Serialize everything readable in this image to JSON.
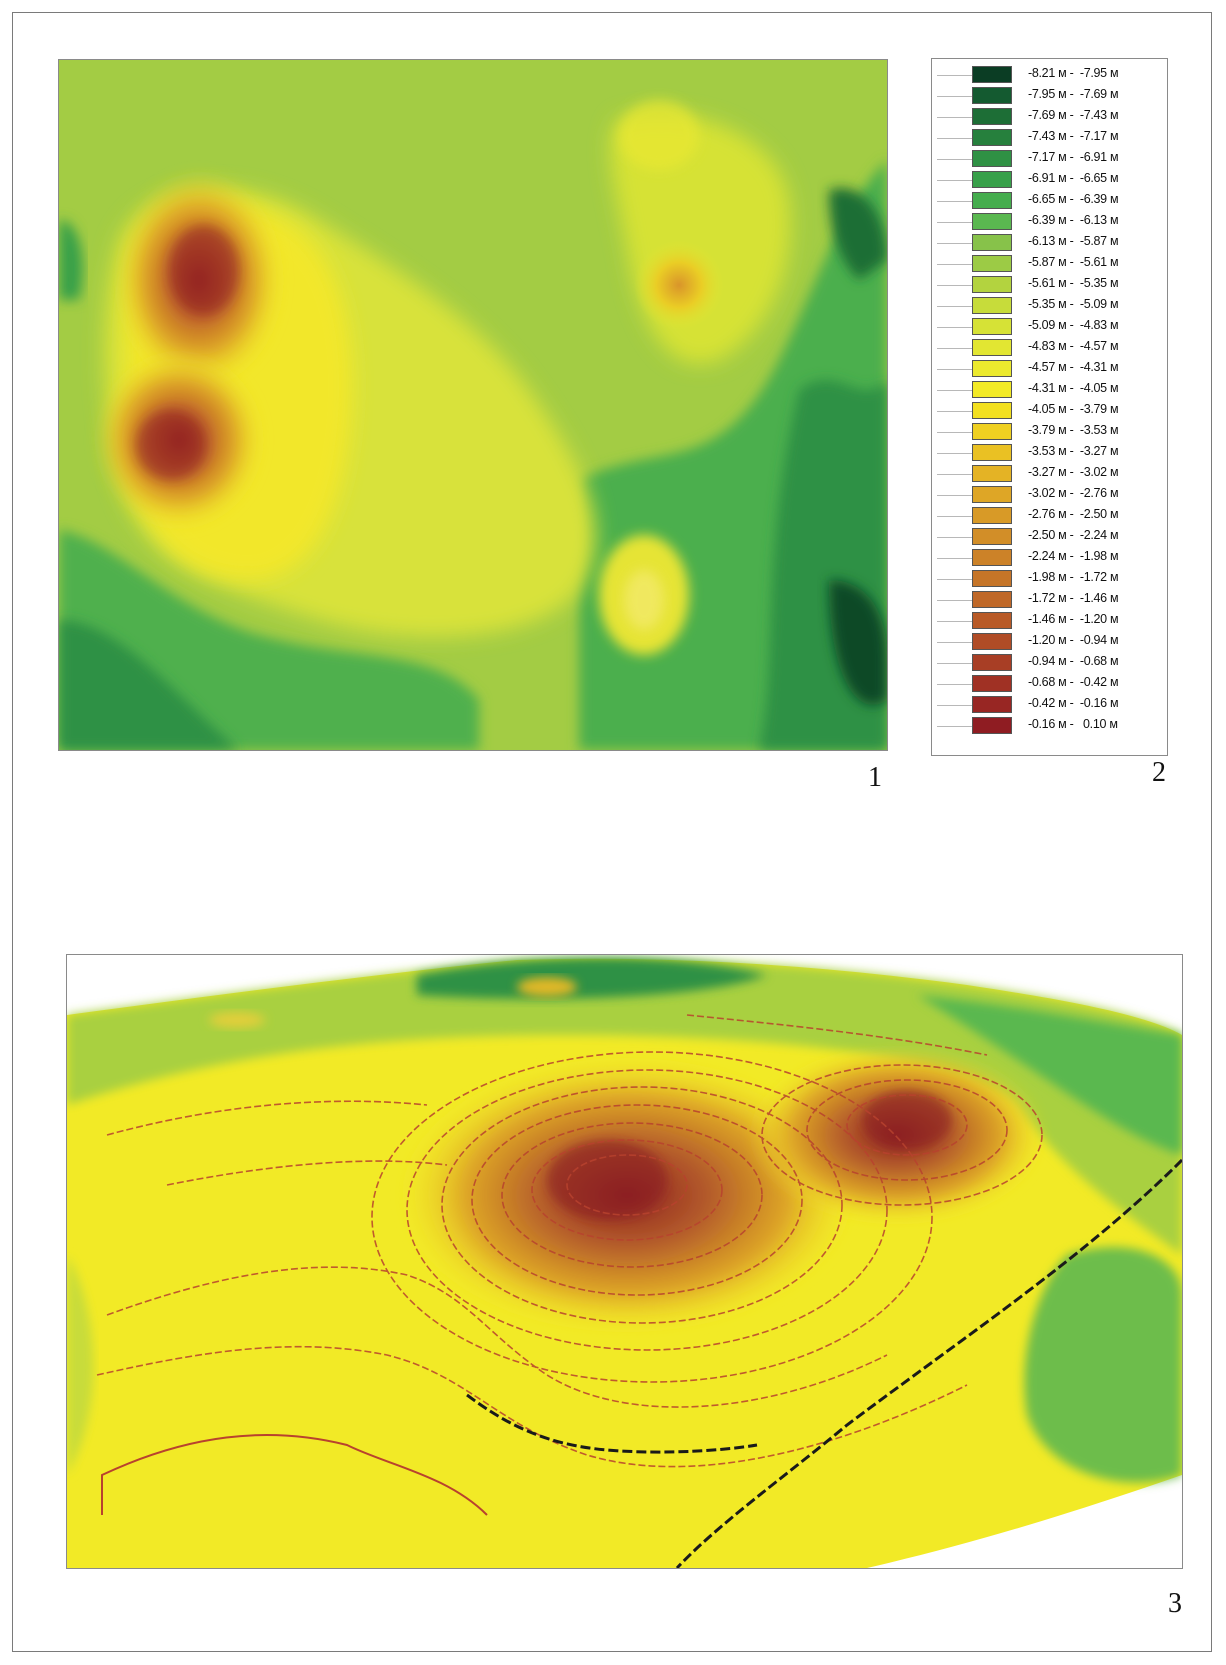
{
  "figure_numbers": {
    "map": "1",
    "legend": "2",
    "relief": "3"
  },
  "legend": {
    "items": [
      {
        "label": "-8.21 м -  -7.95 м",
        "color": "#0b3d24"
      },
      {
        "label": "-7.95 м -  -7.69 м",
        "color": "#145a30"
      },
      {
        "label": "-7.69 м -  -7.43 м",
        "color": "#1d6e36"
      },
      {
        "label": "-7.43 м -  -7.17 м",
        "color": "#26803d"
      },
      {
        "label": "-7.17 м -  -6.91 м",
        "color": "#2f9144"
      },
      {
        "label": "-6.91 м -  -6.65 м",
        "color": "#38a04a"
      },
      {
        "label": "-6.65 м -  -6.39 м",
        "color": "#45ad4e"
      },
      {
        "label": "-6.39 м -  -6.13 м",
        "color": "#5ab850"
      },
      {
        "label": "-6.13 м -  -5.87 м",
        "color": "#87c24a"
      },
      {
        "label": "-5.87 м -  -5.61 м",
        "color": "#9ccb45"
      },
      {
        "label": "-5.61 м -  -5.35 м",
        "color": "#b3d33f"
      },
      {
        "label": "-5.35 м -  -5.09 м",
        "color": "#c7dc3a"
      },
      {
        "label": "-5.09 м -  -4.83 м",
        "color": "#d6e236"
      },
      {
        "label": "-4.83 м -  -4.57 м",
        "color": "#e2e632"
      },
      {
        "label": "-4.57 м -  -4.31 м",
        "color": "#ecea2e"
      },
      {
        "label": "-4.31 м -  -4.05 м",
        "color": "#f3ea26"
      },
      {
        "label": "-4.05 м -  -3.79 м",
        "color": "#f3e01f"
      },
      {
        "label": "-3.79 м -  -3.53 м",
        "color": "#efd021"
      },
      {
        "label": "-3.53 м -  -3.27 м",
        "color": "#eac123"
      },
      {
        "label": "-3.27 м -  -3.02 м",
        "color": "#e4b325"
      },
      {
        "label": "-3.02 м -  -2.76 м",
        "color": "#dea626"
      },
      {
        "label": "-2.76 м -  -2.50 м",
        "color": "#d89a27"
      },
      {
        "label": "-2.50 м -  -2.24 м",
        "color": "#d28e28"
      },
      {
        "label": "-2.24 м -  -1.98 м",
        "color": "#cc8228"
      },
      {
        "label": "-1.98 м -  -1.72 м",
        "color": "#c67528"
      },
      {
        "label": "-1.72 м -  -1.46 м",
        "color": "#bf6828"
      },
      {
        "label": "-1.46 м -  -1.20 м",
        "color": "#b85a27"
      },
      {
        "label": "-1.20 м -  -0.94 м",
        "color": "#b04c26"
      },
      {
        "label": "-0.94 м -  -0.68 м",
        "color": "#a83e25"
      },
      {
        "label": "-0.68 м -  -0.42 м",
        "color": "#a03124"
      },
      {
        "label": "-0.42 м -  -0.16 м",
        "color": "#982623"
      },
      {
        "label": "-0.16 м -   0.10 м",
        "color": "#8f1c22"
      }
    ]
  }
}
